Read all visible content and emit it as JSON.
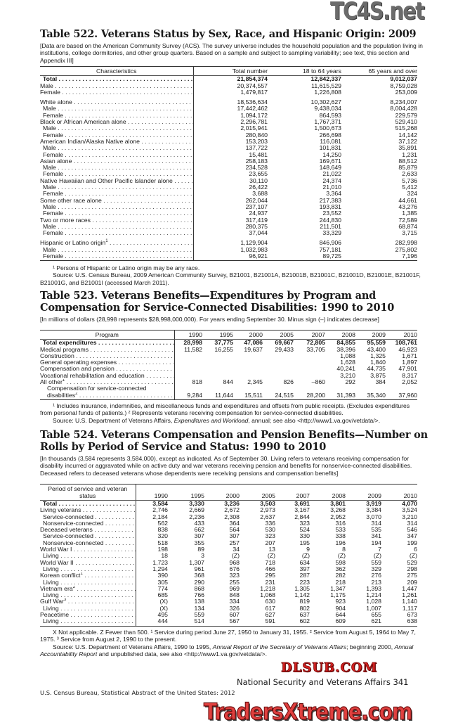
{
  "watermarks": {
    "top": "TC4S.net",
    "middle": "DLSUB.COM",
    "bottom": "TradersXtreme.com"
  },
  "t522": {
    "title": "Table 522. Veterans Status by Sex, Race, and Hispanic Origin: 2009",
    "headnote": "[Data are based on the American Community Survey (ACS). The survey universe includes the household population and the population living in institutions, college dormitories, and other group quarters. Based on a sample and subject to sampling variability; see text, this section and Appendix III]",
    "columns": [
      "Characteristics",
      "Total number",
      "18 to 64 years",
      "65 years and over"
    ],
    "rows": [
      {
        "label": "Total",
        "values": [
          "21,854,374",
          "12,842,337",
          "9,012,037"
        ],
        "bold": true,
        "indent": 1
      },
      {
        "label": "Male",
        "values": [
          "20,374,557",
          "11,615,529",
          "8,759,028"
        ]
      },
      {
        "label": "Female",
        "values": [
          "1,479,817",
          "1,226,808",
          "253,009"
        ]
      },
      {
        "label": "White alone",
        "values": [
          "18,536,634",
          "10,302,627",
          "8,234,007"
        ],
        "gap": true
      },
      {
        "label": "Male",
        "values": [
          "17,442,462",
          "9,438,034",
          "8,004,428"
        ],
        "indent": 1
      },
      {
        "label": "Female",
        "values": [
          "1,094,172",
          "864,593",
          "229,579"
        ],
        "indent": 1
      },
      {
        "label": "Black or African American alone",
        "values": [
          "2,296,781",
          "1,767,371",
          "529,410"
        ]
      },
      {
        "label": "Male",
        "values": [
          "2,015,941",
          "1,500,673",
          "515,268"
        ],
        "indent": 1
      },
      {
        "label": "Female",
        "values": [
          "280,840",
          "266,698",
          "14,142"
        ],
        "indent": 1
      },
      {
        "label": "American Indian/Alaska Native alone",
        "values": [
          "153,203",
          "116,081",
          "37,122"
        ]
      },
      {
        "label": "Male",
        "values": [
          "137,722",
          "101,831",
          "35,891"
        ],
        "indent": 1
      },
      {
        "label": "Female",
        "values": [
          "15,481",
          "14,250",
          "1,231"
        ],
        "indent": 1
      },
      {
        "label": "Asian alone",
        "values": [
          "258,183",
          "169,671",
          "88,512"
        ]
      },
      {
        "label": "Male",
        "values": [
          "234,528",
          "148,649",
          "85,879"
        ],
        "indent": 1
      },
      {
        "label": "Female",
        "values": [
          "23,655",
          "21,022",
          "2,633"
        ],
        "indent": 1
      },
      {
        "label": "Native Hawaiian and Other Pacific Islander alone",
        "values": [
          "30,110",
          "24,374",
          "5,736"
        ]
      },
      {
        "label": "Male",
        "values": [
          "26,422",
          "21,010",
          "5,412"
        ],
        "indent": 1
      },
      {
        "label": "Female",
        "values": [
          "3,688",
          "3,364",
          "324"
        ],
        "indent": 1
      },
      {
        "label": "Some other race alone",
        "values": [
          "262,044",
          "217,383",
          "44,661"
        ]
      },
      {
        "label": "Male",
        "values": [
          "237,107",
          "193,831",
          "43,276"
        ],
        "indent": 1
      },
      {
        "label": "Female",
        "values": [
          "24,937",
          "23,552",
          "1,385"
        ],
        "indent": 1
      },
      {
        "label": "Two or more races",
        "values": [
          "317,419",
          "244,830",
          "72,589"
        ]
      },
      {
        "label": "Male",
        "values": [
          "280,375",
          "211,501",
          "68,874"
        ],
        "indent": 1
      },
      {
        "label": "Female",
        "values": [
          "37,044",
          "33,329",
          "3,715"
        ],
        "indent": 1
      },
      {
        "label": "Hispanic or Latino origin",
        "sup": "1",
        "values": [
          "1,129,904",
          "846,906",
          "282,998"
        ],
        "gap": true
      },
      {
        "label": "Male",
        "values": [
          "1,032,983",
          "757,181",
          "275,802"
        ],
        "indent": 1
      },
      {
        "label": "Female",
        "values": [
          "96,921",
          "89,725",
          "7,196"
        ],
        "indent": 1
      }
    ],
    "footnote": "¹ Persons of Hispanic or Latino origin may be any race.",
    "source": "Source: U.S. Census Bureau, 2009 American Community Survey, B21001, B21001A, B21001B, B21001C, B21001D, B21001E, B21001F, B21001G, and B21001I (accessed March 2011)."
  },
  "t523": {
    "title": "Table 523. Veterans Benefits—Expenditures by Program and Compensation for Service-Connected Disabilities: 1990 to 2010",
    "headnote": "[In millions of dollars (28,998 represents $28,998,000,000). For years ending  September 30. Minus sign (–) indicates decrease]",
    "columns": [
      "Program",
      "1990",
      "1995",
      "2000",
      "2005",
      "2007",
      "2008",
      "2009",
      "2010"
    ],
    "rows": [
      {
        "label": "Total expenditures",
        "values": [
          "28,998",
          "37,775",
          "47,086",
          "69,667",
          "72,805",
          "84,855",
          "95,559",
          "108,761"
        ],
        "bold": true,
        "indent": 1
      },
      {
        "label": "Medical programs",
        "values": [
          "11,582",
          "16,255",
          "19,637",
          "29,433",
          "33,705",
          "38,396",
          "43,400",
          "46,923"
        ]
      },
      {
        "label": "Construction",
        "values": [
          "",
          "",
          "",
          "",
          "",
          "1,088",
          "1,325",
          "1,671"
        ]
      },
      {
        "label": "General operating expenses",
        "values": [
          "",
          "",
          "",
          "",
          "",
          "1,628",
          "1,840",
          "1,897"
        ]
      },
      {
        "label": "Compensation and pension",
        "values": [
          "",
          "",
          "",
          "",
          "",
          "40,241",
          "44,735",
          "47,901"
        ]
      },
      {
        "label": "Vocational rehabilitation and education",
        "values": [
          "",
          "",
          "",
          "",
          "",
          "3,210",
          "3,875",
          "8,317"
        ]
      },
      {
        "label": "All other",
        "sup": "1",
        "values": [
          "818",
          "844",
          "2,345",
          "826",
          "–860",
          "292",
          "384",
          "2,052"
        ]
      },
      {
        "label": "Compensation for service-connected",
        "values": [
          "",
          "",
          "",
          "",
          "",
          "",
          "",
          ""
        ],
        "indent": 2,
        "nodots": true
      },
      {
        "label": "disabilities",
        "sup": "2",
        "values": [
          "9,284",
          "11,644",
          "15,511",
          "24,515",
          "28,200",
          "31,393",
          "35,340",
          "37,960"
        ],
        "indent": 3
      }
    ],
    "footnote": "¹ Includes insurance, indemnities, and miscellaneous funds and expenditures and offsets from public receipts. (Excludes expenditures from personal funds of patients.) ² Represents veterans receiving compensation for service-connected disabilities.",
    "source_prefix": "Source: U.S. Department of Veterans Affairs, ",
    "source_italic": "Expenditures and Workload",
    "source_suffix": ", annual; see also <http://www1.va.gov/vetdata/>."
  },
  "t524": {
    "title": "Table 524. Veterans Compensation and Pension Benefits—Number on Rolls by Period of Service and Status: 1990 to 2010",
    "headnote": "[In thousands (3,584 represents 3,584,000), except as indicated. As of September 30. Living refers to veterans receiving compensation for disability incurred or aggravated while on active duty and war veterans receiving pension and benefits for nonservice-connected disabilities. Deceased refers to deceased veterans whose dependents were receiving pensions and compensation benefits]",
    "columns": [
      "Period of service and veteran status",
      "1990",
      "1995",
      "2000",
      "2005",
      "2007",
      "2008",
      "2009",
      "2010"
    ],
    "rows": [
      {
        "label": "Total",
        "values": [
          "3,584",
          "3,330",
          "3,236",
          "3,503",
          "3,691",
          "3,801",
          "3,919",
          "4,070"
        ],
        "bold": true,
        "indent": 1
      },
      {
        "label": "Living veterans",
        "values": [
          "2,746",
          "2,669",
          "2,672",
          "2,973",
          "3,167",
          "3,268",
          "3,384",
          "3,524"
        ]
      },
      {
        "label": "Service-connected",
        "values": [
          "2,184",
          "2,236",
          "2,308",
          "2,637",
          "2,844",
          "2,952",
          "3,070",
          "3,210"
        ],
        "indent": 1
      },
      {
        "label": "Nonservice-connected",
        "values": [
          "562",
          "433",
          "364",
          "336",
          "323",
          "316",
          "314",
          "314"
        ],
        "indent": 1
      },
      {
        "label": "Deceased veterans",
        "values": [
          "838",
          "662",
          "564",
          "530",
          "524",
          "533",
          "535",
          "546"
        ]
      },
      {
        "label": "Service-connected",
        "values": [
          "320",
          "307",
          "307",
          "323",
          "330",
          "338",
          "341",
          "347"
        ],
        "indent": 1
      },
      {
        "label": "Nonservice-connected",
        "values": [
          "518",
          "355",
          "257",
          "207",
          "195",
          "196",
          "194",
          "199"
        ],
        "indent": 1
      },
      {
        "label": "World War I",
        "values": [
          "198",
          "89",
          "34",
          "13",
          "9",
          "8",
          "7",
          "6"
        ]
      },
      {
        "label": "Living",
        "values": [
          "18",
          "3",
          "(Z)",
          "(Z)",
          "(Z)",
          "(Z)",
          "(Z)",
          "(Z)"
        ],
        "indent": 1
      },
      {
        "label": "World War II",
        "values": [
          "1,723",
          "1,307",
          "968",
          "718",
          "634",
          "598",
          "559",
          "529"
        ]
      },
      {
        "label": "Living",
        "values": [
          "1,294",
          "961",
          "676",
          "466",
          "397",
          "362",
          "329",
          "298"
        ],
        "indent": 1
      },
      {
        "label": "Korean conflict",
        "sup": "1",
        "values": [
          "390",
          "368",
          "323",
          "295",
          "287",
          "282",
          "276",
          "275"
        ]
      },
      {
        "label": "Living",
        "values": [
          "305",
          "290",
          "255",
          "231",
          "223",
          "218",
          "213",
          "209"
        ],
        "indent": 1
      },
      {
        "label": "Vietnam era",
        "sup": "2",
        "values": [
          "774",
          "868",
          "969",
          "1,218",
          "1,305",
          "1,347",
          "1,393",
          "1,447"
        ]
      },
      {
        "label": "Living",
        "values": [
          "685",
          "766",
          "848",
          "1,068",
          "1,142",
          "1,175",
          "1,214",
          "1,261"
        ],
        "indent": 1
      },
      {
        "label": "Gulf War",
        "sup": "3",
        "values": [
          "(X)",
          "138",
          "334",
          "630",
          "819",
          "923",
          "1,028",
          "1,140"
        ]
      },
      {
        "label": "Living",
        "values": [
          "(X)",
          "134",
          "326",
          "617",
          "802",
          "904",
          "1,007",
          "1,117"
        ],
        "indent": 1
      },
      {
        "label": "Peacetime",
        "values": [
          "495",
          "559",
          "607",
          "627",
          "637",
          "644",
          "655",
          "673"
        ]
      },
      {
        "label": "Living",
        "values": [
          "444",
          "514",
          "567",
          "591",
          "602",
          "609",
          "621",
          "638"
        ],
        "indent": 1
      }
    ],
    "footnote": "X Not applicable. Z Fewer than 500. ¹ Service during period June 27, 1950 to January 31, 1955. ² Service from August 5, 1964 to May 7, 1975. ³ Service from August 2, 1990 to the present.",
    "source_prefix": "Source: U.S. Department of Veterans Affairs, 1990 to 1995, ",
    "source_italic": "Annual Report of the Secretary of Veterans Affairs",
    "source_mid": "; beginning 2000, ",
    "source_italic2": "Annual Accountability Report",
    "source_suffix": " and unpublished data, see also <http://www1.va.gov/vetdata/>."
  },
  "footer": {
    "section": "National Security and Veterans Affairs  341",
    "publication": "U.S. Census Bureau, Statistical Abstract of the United States: 2012"
  }
}
